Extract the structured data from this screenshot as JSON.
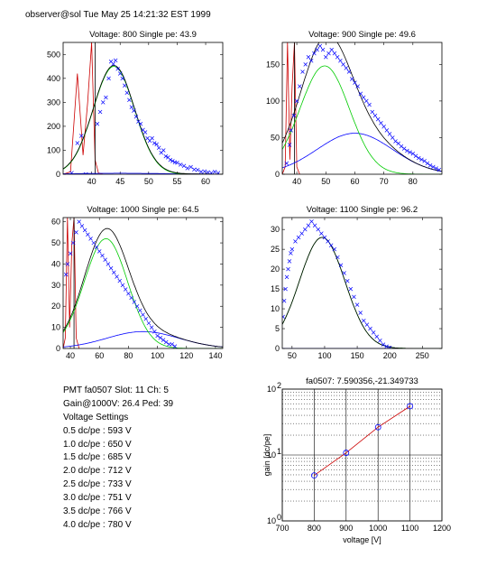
{
  "header": "observer@sol  Tue May 25 14:21:32 EST 1999",
  "info": {
    "lines": [
      "PMT fa0507 Slot: 11 Ch: 5",
      "Gain@1000V: 26.4 Ped: 39",
      "Voltage Settings",
      "0.5 dc/pe : 593 V",
      "1.0 dc/pe : 650 V",
      "1.5 dc/pe : 685 V",
      "2.0 dc/pe : 712 V",
      "2.5 dc/pe : 733 V",
      "3.0 dc/pe : 751 V",
      "3.5 dc/pe : 766 V",
      "4.0 dc/pe : 780 V"
    ]
  },
  "colors": {
    "data": "#0000ff",
    "fit_total": "#000000",
    "fit_signal": "#00cc00",
    "fit_second": "#0000ff",
    "pedestal": "#cc0000"
  },
  "chart_data": [
    {
      "type": "scatter",
      "title": "Voltage: 800 Single pe: 43.9",
      "xlim": [
        35,
        63
      ],
      "ylim": [
        0,
        550
      ],
      "xticks": [
        40,
        45,
        50,
        55,
        60
      ],
      "yticks": [
        0,
        100,
        200,
        300,
        400,
        500
      ],
      "pedestal": [
        [
          35,
          0
        ],
        [
          36.3,
          10
        ],
        [
          37.5,
          420
        ],
        [
          38.5,
          80
        ],
        [
          39.3,
          300
        ],
        [
          40,
          550
        ],
        [
          40.6,
          60
        ],
        [
          41.2,
          5
        ],
        [
          42,
          0
        ]
      ],
      "points": [
        [
          36.5,
          5
        ],
        [
          37.5,
          130
        ],
        [
          38.2,
          160
        ],
        [
          39,
          0
        ],
        [
          41,
          210
        ],
        [
          41.5,
          260
        ],
        [
          42,
          300
        ],
        [
          42.5,
          320
        ],
        [
          43,
          400
        ],
        [
          43.4,
          470
        ],
        [
          43.8,
          460
        ],
        [
          44.2,
          475
        ],
        [
          44.6,
          440
        ],
        [
          45,
          420
        ],
        [
          45.4,
          400
        ],
        [
          45.8,
          370
        ],
        [
          46.2,
          340
        ],
        [
          46.6,
          310
        ],
        [
          47,
          280
        ],
        [
          47.4,
          265
        ],
        [
          47.8,
          240
        ],
        [
          48.2,
          220
        ],
        [
          48.6,
          210
        ],
        [
          49,
          185
        ],
        [
          49.4,
          175
        ],
        [
          49.8,
          150
        ],
        [
          50.2,
          140
        ],
        [
          50.6,
          150
        ],
        [
          51,
          130
        ],
        [
          51.4,
          125
        ],
        [
          51.8,
          110
        ],
        [
          52.2,
          90
        ],
        [
          52.6,
          100
        ],
        [
          53,
          75
        ],
        [
          53.4,
          70
        ],
        [
          53.8,
          60
        ],
        [
          54.2,
          55
        ],
        [
          54.6,
          50
        ],
        [
          55,
          48
        ],
        [
          55.6,
          40
        ],
        [
          56.2,
          35
        ],
        [
          56.8,
          25
        ],
        [
          57.4,
          30
        ],
        [
          58,
          20
        ],
        [
          58.6,
          18
        ],
        [
          59.2,
          10
        ],
        [
          59.8,
          12
        ],
        [
          60.4,
          8
        ],
        [
          61,
          5
        ],
        [
          61.6,
          10
        ],
        [
          62.2,
          5
        ]
      ],
      "signal": {
        "amp": 450,
        "mu": 43.9,
        "sigma": 3.6,
        "skew": 1
      },
      "second": {
        "amp": 4,
        "mu": 45,
        "sigma": 8
      }
    },
    {
      "type": "scatter",
      "title": "Voltage: 900 Single pe: 49.6",
      "xlim": [
        35,
        90
      ],
      "ylim": [
        0,
        180
      ],
      "xticks": [
        40,
        50,
        60,
        70,
        80
      ],
      "yticks": [
        0,
        50,
        100,
        150
      ],
      "pedestal": [
        [
          35,
          0
        ],
        [
          36,
          10
        ],
        [
          36.8,
          180
        ],
        [
          37.6,
          20
        ],
        [
          38.4,
          120
        ],
        [
          39.2,
          180
        ],
        [
          40,
          10
        ],
        [
          41,
          0
        ]
      ],
      "points": [
        [
          36.5,
          15
        ],
        [
          37.5,
          40
        ],
        [
          38,
          60
        ],
        [
          39,
          80
        ],
        [
          40,
          100
        ],
        [
          41,
          120
        ],
        [
          42,
          140
        ],
        [
          43,
          150
        ],
        [
          44,
          160
        ],
        [
          45,
          155
        ],
        [
          46,
          165
        ],
        [
          47,
          170
        ],
        [
          48,
          175
        ],
        [
          49,
          170
        ],
        [
          50,
          160
        ],
        [
          51,
          165
        ],
        [
          52,
          170
        ],
        [
          53,
          165
        ],
        [
          54,
          160
        ],
        [
          55,
          155
        ],
        [
          56,
          150
        ],
        [
          57,
          145
        ],
        [
          58,
          140
        ],
        [
          59,
          130
        ],
        [
          60,
          125
        ],
        [
          61,
          120
        ],
        [
          62,
          110
        ],
        [
          63,
          105
        ],
        [
          64,
          100
        ],
        [
          65,
          95
        ],
        [
          66,
          85
        ],
        [
          67,
          80
        ],
        [
          68,
          75
        ],
        [
          69,
          70
        ],
        [
          70,
          65
        ],
        [
          71,
          60
        ],
        [
          72,
          55
        ],
        [
          73,
          50
        ],
        [
          74,
          45
        ],
        [
          75,
          42
        ],
        [
          76,
          38
        ],
        [
          77,
          35
        ],
        [
          78,
          32
        ],
        [
          79,
          30
        ],
        [
          80,
          28
        ],
        [
          81,
          25
        ],
        [
          82,
          22
        ],
        [
          83,
          20
        ],
        [
          84,
          18
        ],
        [
          85,
          15
        ],
        [
          86,
          12
        ],
        [
          87,
          10
        ],
        [
          88,
          8
        ],
        [
          89,
          6
        ]
      ],
      "signal": {
        "amp": 148,
        "mu": 49.6,
        "sigma": 8.5,
        "skew": 1
      },
      "second": {
        "amp": 56,
        "mu": 60,
        "sigma": 13
      }
    },
    {
      "type": "scatter",
      "title": "Voltage: 1000 Single pe: 64.5",
      "xlim": [
        35,
        145
      ],
      "ylim": [
        0,
        62
      ],
      "xticks": [
        40,
        60,
        80,
        100,
        120,
        140
      ],
      "yticks": [
        0,
        10,
        20,
        30,
        40,
        50,
        60
      ],
      "pedestal": [
        [
          35,
          0
        ],
        [
          36.5,
          5
        ],
        [
          38,
          62
        ],
        [
          39.5,
          10
        ],
        [
          41,
          50
        ],
        [
          42.5,
          62
        ],
        [
          44,
          5
        ],
        [
          46,
          0
        ]
      ],
      "points": [
        [
          37,
          35
        ],
        [
          38,
          40
        ],
        [
          40,
          45
        ],
        [
          42,
          50
        ],
        [
          44,
          55
        ],
        [
          46,
          60
        ],
        [
          48,
          58
        ],
        [
          50,
          56
        ],
        [
          52,
          54
        ],
        [
          54,
          52
        ],
        [
          56,
          50
        ],
        [
          58,
          48
        ],
        [
          60,
          46
        ],
        [
          62,
          44
        ],
        [
          64,
          42
        ],
        [
          66,
          40
        ],
        [
          68,
          38
        ],
        [
          70,
          36
        ],
        [
          72,
          34
        ],
        [
          74,
          32
        ],
        [
          76,
          30
        ],
        [
          78,
          28
        ],
        [
          80,
          26
        ],
        [
          82,
          24
        ],
        [
          84,
          22
        ],
        [
          86,
          20
        ],
        [
          88,
          18
        ],
        [
          90,
          16
        ],
        [
          92,
          14
        ],
        [
          94,
          12
        ],
        [
          96,
          10
        ],
        [
          98,
          8
        ],
        [
          100,
          6
        ],
        [
          102,
          5
        ],
        [
          104,
          4
        ],
        [
          106,
          3
        ],
        [
          108,
          2
        ],
        [
          110,
          2
        ],
        [
          112,
          1
        ]
      ],
      "signal": {
        "amp": 52,
        "mu": 64.5,
        "sigma": 15,
        "skew": 1
      },
      "second": {
        "amp": 8,
        "mu": 90,
        "sigma": 25
      }
    },
    {
      "type": "scatter",
      "title": "Voltage: 1100 Single pe: 96.2",
      "xlim": [
        35,
        280
      ],
      "ylim": [
        0,
        33
      ],
      "xticks": [
        50,
        100,
        150,
        200,
        250
      ],
      "yticks": [
        0,
        5,
        10,
        15,
        20,
        25,
        30
      ],
      "pedestal": [],
      "points": [
        [
          36,
          8
        ],
        [
          38,
          12
        ],
        [
          40,
          15
        ],
        [
          42,
          18
        ],
        [
          44,
          20
        ],
        [
          46,
          22
        ],
        [
          48,
          24
        ],
        [
          50,
          25
        ],
        [
          55,
          27
        ],
        [
          60,
          28
        ],
        [
          65,
          29
        ],
        [
          70,
          30
        ],
        [
          75,
          31
        ],
        [
          80,
          32
        ],
        [
          85,
          31
        ],
        [
          90,
          30
        ],
        [
          95,
          29
        ],
        [
          100,
          28
        ],
        [
          105,
          27
        ],
        [
          110,
          26
        ],
        [
          115,
          25
        ],
        [
          120,
          23
        ],
        [
          125,
          21
        ],
        [
          130,
          19
        ],
        [
          135,
          17
        ],
        [
          140,
          15
        ],
        [
          145,
          13
        ],
        [
          150,
          11
        ],
        [
          155,
          9
        ],
        [
          160,
          7
        ],
        [
          165,
          6
        ],
        [
          170,
          5
        ],
        [
          175,
          4
        ],
        [
          180,
          3
        ],
        [
          185,
          2
        ],
        [
          190,
          1
        ],
        [
          195,
          0.5
        ],
        [
          200,
          0.2
        ]
      ],
      "signal": {
        "amp": 28,
        "mu": 96.2,
        "sigma": 35,
        "skew": 1
      },
      "second": {
        "amp": 0,
        "mu": 100,
        "sigma": 50
      }
    },
    {
      "type": "line",
      "title": "fa0507: 7.590356,-21.349733",
      "xlabel": "voltage [V]",
      "ylabel": "gain [dc/pe]",
      "xlim": [
        700,
        1200
      ],
      "yscale": "log",
      "ylim": [
        1,
        100
      ],
      "xticks": [
        700,
        800,
        900,
        1000,
        1100,
        1200
      ],
      "yticks": [
        1,
        10,
        100
      ],
      "ytick_labels": [
        "10^0",
        "10^1",
        "10^2"
      ],
      "grid": true,
      "series": [
        {
          "x": [
            800,
            900,
            1000,
            1100
          ],
          "y": [
            4.9,
            10.8,
            26.4,
            55.0
          ]
        }
      ]
    }
  ]
}
